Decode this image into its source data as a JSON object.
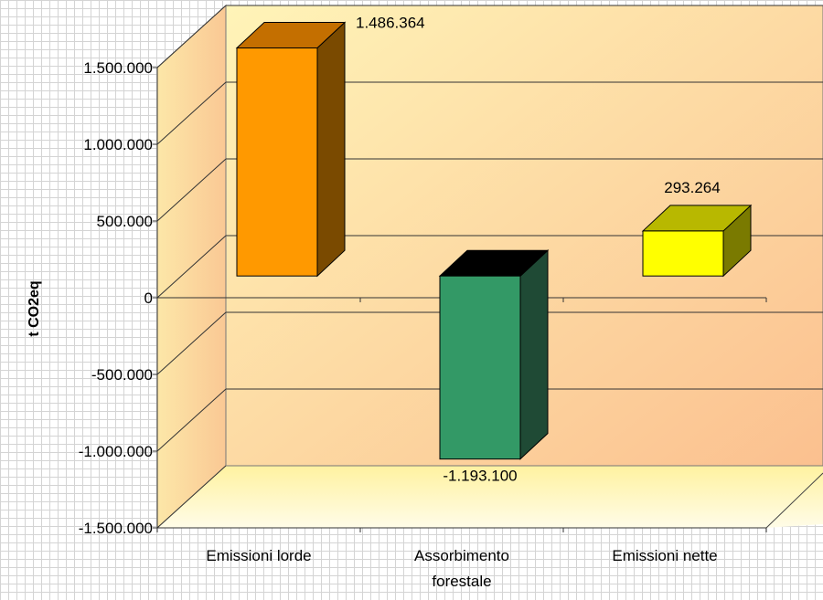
{
  "chart_data": {
    "type": "bar",
    "style": "3d",
    "categories": [
      "Emissioni lorde",
      "Assorbimento forestale",
      "Emissioni nette"
    ],
    "category_lines": [
      [
        "Emissioni lorde"
      ],
      [
        "Assorbimento",
        "forestale"
      ],
      [
        "Emissioni nette"
      ]
    ],
    "values": [
      1486364,
      -1193100,
      293264
    ],
    "value_labels": [
      "1.486.364",
      "-1.193.100",
      "293.264"
    ],
    "ylabel": "t CO2eq",
    "ylim": [
      -1500000,
      1500000
    ],
    "yticks": [
      -1500000,
      -1000000,
      -500000,
      0,
      500000,
      1000000,
      1500000
    ],
    "ytick_labels": [
      "-1.500.000",
      "-1.000.000",
      "-500.000",
      "0",
      "500.000",
      "1.000.000",
      "1.500.000"
    ],
    "grid": true,
    "colors": {
      "bars": [
        "#ff9900",
        "#339966",
        "#ffff00"
      ],
      "bar_sides": [
        "#7a4a00",
        "#1f4a35",
        "#7a7a00"
      ],
      "bar_tops": [
        "#c46f00",
        "#000000",
        "#b8b800"
      ],
      "wall_light": "#fff6c2",
      "wall_dark": "#fbc08f"
    }
  }
}
